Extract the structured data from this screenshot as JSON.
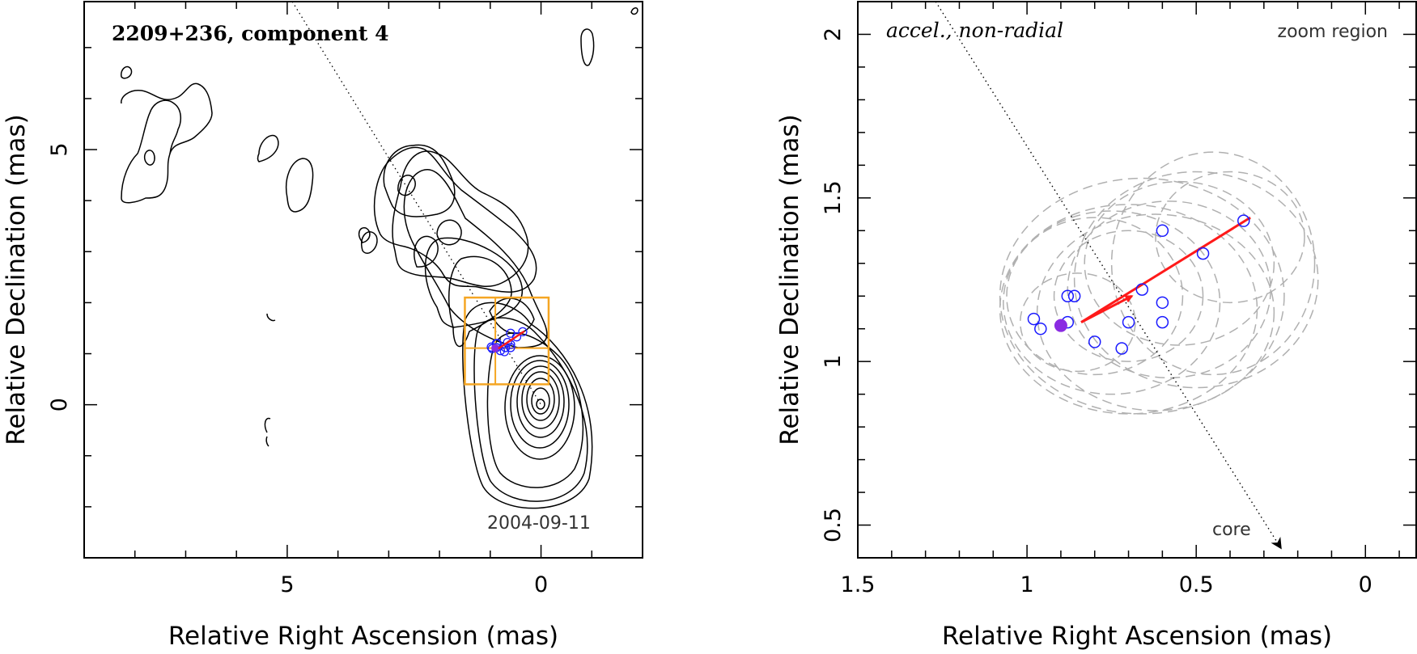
{
  "colors": {
    "contour": "#000000",
    "box": "#f5a623",
    "arrow": "#ff1a1a",
    "points": "#1a1aff",
    "ref_point": "#8a2be2",
    "ellipse": "#b0b0b0"
  },
  "chart_data": [
    {
      "type": "contour",
      "title": "2209+236, component 4",
      "date_label": "2004-09-11",
      "xlabel": "Relative Right Ascension (mas)",
      "ylabel": "Relative Declination (mas)",
      "xlim": [
        9.0,
        -2.0
      ],
      "ylim": [
        -3.0,
        7.9
      ],
      "x_ticks": [
        5,
        0
      ],
      "y_ticks": [
        5,
        0
      ],
      "core_position": [
        0.0,
        0.0
      ],
      "zoom_box": {
        "x": [
          1.5,
          -0.15
        ],
        "y": [
          0.4,
          2.1
        ]
      },
      "jet_axis_line": {
        "from": [
          4.9,
          7.9
        ],
        "to": [
          0.0,
          0.0
        ]
      },
      "positions": [
        [
          0.98,
          1.13
        ],
        [
          0.96,
          1.1
        ],
        [
          0.88,
          1.2
        ],
        [
          0.86,
          1.2
        ],
        [
          0.88,
          1.12
        ],
        [
          0.8,
          1.06
        ],
        [
          0.72,
          1.04
        ],
        [
          0.7,
          1.12
        ],
        [
          0.6,
          1.12
        ],
        [
          0.6,
          1.18
        ],
        [
          0.66,
          1.22
        ],
        [
          0.6,
          1.4
        ],
        [
          0.48,
          1.33
        ],
        [
          0.36,
          1.43
        ]
      ],
      "ref_point": [
        0.9,
        1.11
      ],
      "arrow": {
        "from": [
          0.84,
          1.1
        ],
        "to": [
          0.33,
          1.44
        ]
      }
    },
    {
      "type": "scatter",
      "title": "accel., non-radial",
      "subtitle": "zoom region",
      "core_label": "core",
      "xlabel": "Relative Right Ascension (mas)",
      "ylabel": "Relative Declination (mas)",
      "xlim": [
        1.5,
        -0.15
      ],
      "ylim": [
        0.4,
        2.1
      ],
      "x_ticks": [
        1.5,
        1,
        0.5,
        0
      ],
      "y_ticks": [
        0.5,
        1,
        1.5,
        2
      ],
      "x_tick_labels": [
        "1.5",
        "1",
        "0.5",
        "0"
      ],
      "y_tick_labels": [
        "0.5",
        "1",
        "1.5",
        "2"
      ],
      "positions": [
        [
          0.98,
          1.13
        ],
        [
          0.96,
          1.1
        ],
        [
          0.88,
          1.2
        ],
        [
          0.86,
          1.2
        ],
        [
          0.88,
          1.12
        ],
        [
          0.8,
          1.06
        ],
        [
          0.72,
          1.04
        ],
        [
          0.7,
          1.12
        ],
        [
          0.6,
          1.12
        ],
        [
          0.6,
          1.18
        ],
        [
          0.66,
          1.22
        ],
        [
          0.6,
          1.4
        ],
        [
          0.48,
          1.33
        ],
        [
          0.36,
          1.43
        ]
      ],
      "ref_point": [
        0.9,
        1.11
      ],
      "arrow": {
        "from": [
          0.84,
          1.12
        ],
        "to": [
          0.34,
          1.44
        ]
      },
      "short_arrow": {
        "from": [
          0.84,
          1.12
        ],
        "to": [
          0.69,
          1.2
        ]
      },
      "core_direction_line": {
        "from": [
          1.27,
          2.1
        ],
        "to": [
          0.25,
          0.43
        ]
      },
      "ellipses": [
        {
          "cx": 0.8,
          "cy": 1.2,
          "rx": 0.26,
          "ry": 0.24
        },
        {
          "cx": 0.75,
          "cy": 1.18,
          "rx": 0.32,
          "ry": 0.28
        },
        {
          "cx": 0.7,
          "cy": 1.16,
          "rx": 0.38,
          "ry": 0.32
        },
        {
          "cx": 0.66,
          "cy": 1.2,
          "rx": 0.42,
          "ry": 0.36
        },
        {
          "cx": 0.62,
          "cy": 1.15,
          "rx": 0.35,
          "ry": 0.3
        },
        {
          "cx": 0.58,
          "cy": 1.22,
          "rx": 0.3,
          "ry": 0.27
        },
        {
          "cx": 0.55,
          "cy": 1.3,
          "rx": 0.28,
          "ry": 0.25
        },
        {
          "cx": 0.7,
          "cy": 1.2,
          "rx": 0.22,
          "ry": 0.2
        },
        {
          "cx": 0.5,
          "cy": 1.25,
          "rx": 0.36,
          "ry": 0.33
        },
        {
          "cx": 0.45,
          "cy": 1.3,
          "rx": 0.3,
          "ry": 0.34
        },
        {
          "cx": 0.4,
          "cy": 1.38,
          "rx": 0.22,
          "ry": 0.2
        },
        {
          "cx": 0.85,
          "cy": 1.12,
          "rx": 0.17,
          "ry": 0.15
        }
      ]
    }
  ]
}
